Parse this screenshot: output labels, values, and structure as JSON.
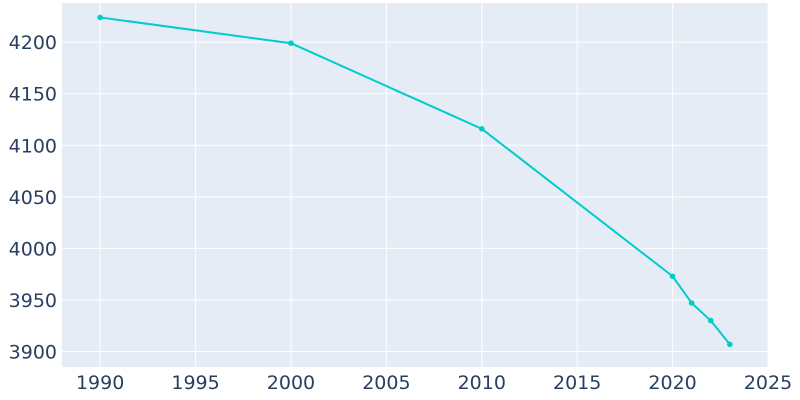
{
  "chart_data": {
    "type": "line",
    "x": [
      1990,
      2000,
      2010,
      2020,
      2021,
      2022,
      2023
    ],
    "series": [
      {
        "values": [
          4224,
          4199,
          4116,
          3973,
          3947,
          3930,
          3907
        ]
      }
    ],
    "xlim": [
      1988,
      2025
    ],
    "ylim": [
      3885,
      4238
    ],
    "xticks": [
      1990,
      1995,
      2000,
      2005,
      2010,
      2015,
      2020,
      2025
    ],
    "yticks": [
      3900,
      3950,
      4000,
      4050,
      4100,
      4150,
      4200
    ],
    "xtick_labels": [
      "1990",
      "1995",
      "2000",
      "2005",
      "2010",
      "2015",
      "2020",
      "2025"
    ],
    "ytick_labels": [
      "3900",
      "3950",
      "4000",
      "4050",
      "4100",
      "4150",
      "4200"
    ],
    "grid": true,
    "colors": {
      "line": "#00cccc",
      "plot_bg": "#e5ecf6",
      "grid": "#ffffff",
      "text": "#2a3f5f"
    }
  }
}
